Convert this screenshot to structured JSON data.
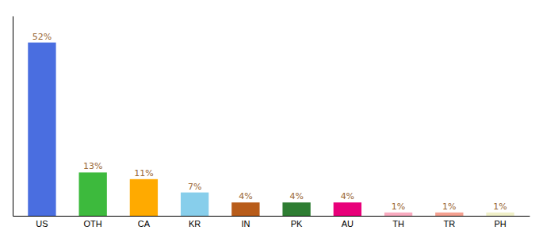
{
  "chart_data": {
    "type": "bar",
    "categories": [
      "US",
      "OTH",
      "CA",
      "KR",
      "IN",
      "PK",
      "AU",
      "TH",
      "TR",
      "PH"
    ],
    "values": [
      52,
      13,
      11,
      7,
      4,
      4,
      4,
      1,
      1,
      1
    ],
    "value_labels": [
      "52%",
      "13%",
      "11%",
      "7%",
      "4%",
      "4%",
      "4%",
      "1%",
      "1%",
      "1%"
    ],
    "colors": [
      "#4a6ee0",
      "#3dba3d",
      "#ffaa00",
      "#87ceeb",
      "#b85c1a",
      "#2e7d32",
      "#e8007a",
      "#f8aabf",
      "#f4a090",
      "#f0f0c8"
    ],
    "ylim": [
      0,
      60
    ],
    "data_labels": true,
    "tick_labels": "x"
  }
}
